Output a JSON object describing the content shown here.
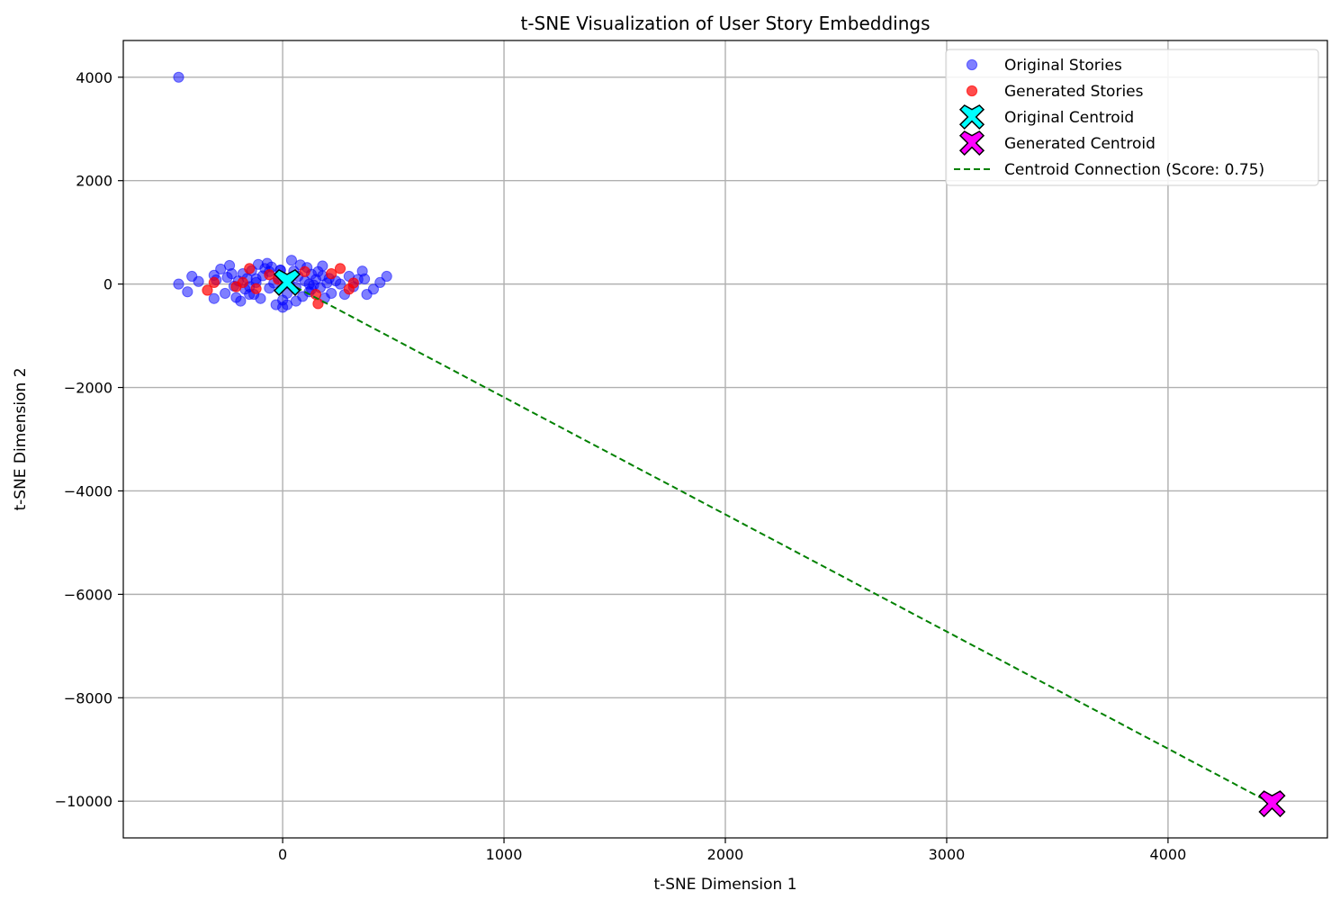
{
  "chart_data": {
    "type": "scatter",
    "title": "t-SNE Visualization of User Story Embeddings",
    "xlabel": "t-SNE Dimension 1",
    "ylabel": "t-SNE Dimension 2",
    "xlim": [
      -720,
      4720
    ],
    "ylim": [
      -10710,
      4710
    ],
    "xticks": [
      {
        "value": 0,
        "label": "0"
      },
      {
        "value": 1000,
        "label": "1000"
      },
      {
        "value": 2000,
        "label": "2000"
      },
      {
        "value": 3000,
        "label": "3000"
      },
      {
        "value": 4000,
        "label": "4000"
      }
    ],
    "yticks": [
      {
        "value": 4000,
        "label": "4000"
      },
      {
        "value": 2000,
        "label": "2000"
      },
      {
        "value": 0,
        "label": "0"
      },
      {
        "value": -2000,
        "label": "−2000"
      },
      {
        "value": -4000,
        "label": "−4000"
      },
      {
        "value": -6000,
        "label": "−6000"
      },
      {
        "value": -8000,
        "label": "−8000"
      },
      {
        "value": -10000,
        "label": "−10000"
      }
    ],
    "grid": true,
    "legend_position": "top-right",
    "colors": {
      "original": "#0000ff",
      "generated": "#ff0000",
      "original_centroid": "#00ffff",
      "generated_centroid": "#ff00ff",
      "connection": "#008000",
      "grid": "#b0b0b0"
    },
    "series": [
      {
        "name": "Original Stories",
        "kind": "points",
        "x": [
          -470,
          -470,
          -430,
          -410,
          -380,
          -310,
          -310,
          -300,
          -280,
          -260,
          -250,
          -240,
          -220,
          -210,
          -200,
          -190,
          -180,
          -170,
          -160,
          -150,
          -140,
          -130,
          -120,
          -110,
          -100,
          -90,
          -80,
          -70,
          -60,
          -50,
          -40,
          -30,
          -20,
          -10,
          0,
          0,
          10,
          20,
          20,
          30,
          40,
          50,
          60,
          70,
          80,
          90,
          100,
          110,
          120,
          130,
          140,
          150,
          160,
          170,
          180,
          190,
          200,
          210,
          220,
          240,
          260,
          280,
          300,
          320,
          340,
          360,
          370,
          380,
          410,
          440,
          470,
          -230,
          -150,
          -60,
          60,
          130,
          180,
          -120,
          -10,
          120
        ],
        "y": [
          4000,
          0,
          -150,
          150,
          50,
          170,
          -280,
          80,
          290,
          -180,
          130,
          360,
          -40,
          -260,
          60,
          -330,
          200,
          -100,
          110,
          -50,
          260,
          -200,
          30,
          380,
          -280,
          160,
          300,
          400,
          -80,
          330,
          20,
          -400,
          120,
          270,
          -310,
          -450,
          100,
          -180,
          -400,
          40,
          460,
          250,
          -60,
          150,
          370,
          -240,
          60,
          320,
          -150,
          190,
          -20,
          90,
          240,
          -70,
          350,
          -270,
          20,
          110,
          -180,
          60,
          0,
          -200,
          150,
          -50,
          90,
          250,
          100,
          -200,
          -100,
          30,
          150,
          200,
          -200,
          240,
          -330,
          -100,
          160,
          100,
          270,
          0
        ]
      },
      {
        "name": "Generated Stories",
        "kind": "points",
        "x": [
          -340,
          -310,
          -180,
          -150,
          -120,
          -60,
          -20,
          100,
          150,
          160,
          220,
          260,
          300,
          320,
          -210
        ],
        "y": [
          -120,
          30,
          30,
          300,
          -90,
          180,
          90,
          240,
          -200,
          -380,
          200,
          300,
          -100,
          20,
          -50
        ]
      },
      {
        "name": "Original Centroid",
        "kind": "marker",
        "x": [
          20
        ],
        "y": [
          30
        ]
      },
      {
        "name": "Generated Centroid",
        "kind": "marker",
        "x": [
          4470
        ],
        "y": [
          -10050
        ]
      },
      {
        "name": "Centroid Connection (Score: 0.75)",
        "kind": "line",
        "x": [
          20,
          4470
        ],
        "y": [
          30,
          -10050
        ]
      }
    ]
  }
}
